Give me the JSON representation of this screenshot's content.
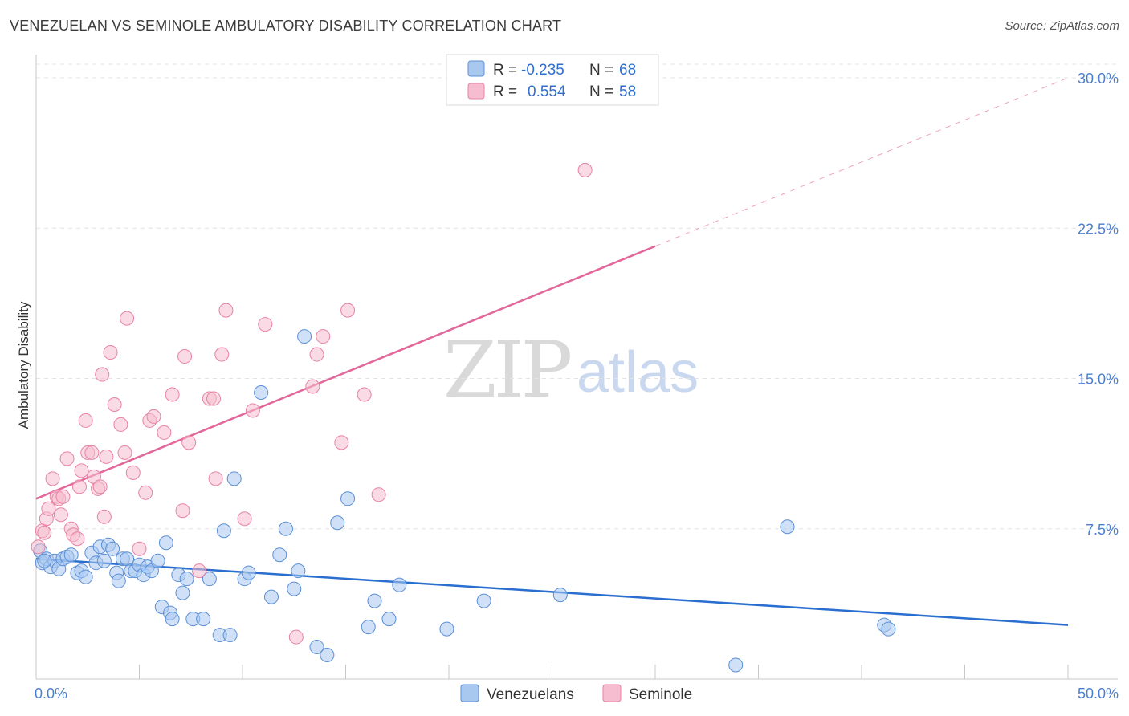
{
  "title": "VENEZUELAN VS SEMINOLE AMBULATORY DISABILITY CORRELATION CHART",
  "source": "Source: ZipAtlas.com",
  "watermark": {
    "zip": "ZIP",
    "atlas": "atlas"
  },
  "colors": {
    "blue_fill": "#a9c8f0",
    "blue_stroke": "#5b8fd6",
    "blue_line": "#2a6fd0",
    "pink_fill": "#f6bdd0",
    "pink_stroke": "#e882a3",
    "pink_line": "#e2679a",
    "grid": "#e3e3e3",
    "axis_label": "#4a7fd0"
  },
  "legend_top": {
    "rows": [
      {
        "r_label": "R =",
        "r_value": "-0.235",
        "n_label": "N =",
        "n_value": "68",
        "series": "blue"
      },
      {
        "r_label": "R =",
        "r_value": "0.554",
        "n_label": "N =",
        "n_value": "58",
        "series": "pink"
      }
    ]
  },
  "legend_bottom": [
    "Venezuelans",
    "Seminole"
  ],
  "chart_data": {
    "type": "scatter",
    "title": "VENEZUELAN VS SEMINOLE AMBULATORY DISABILITY CORRELATION CHART",
    "xlabel": "",
    "ylabel": "Ambulatory Disability",
    "xlim": [
      0,
      50
    ],
    "ylim": [
      0,
      30
    ],
    "x_tick_labels": [
      "0.0%",
      "50.0%"
    ],
    "y_ticks": [
      7.5,
      15.0,
      22.5,
      30.0
    ],
    "y_tick_labels": [
      "7.5%",
      "15.0%",
      "22.5%",
      "30.0%"
    ],
    "series": [
      {
        "name": "Venezuelans",
        "color": "blue",
        "R": -0.235,
        "N": 68,
        "trend": {
          "x0": 0,
          "y0": 6.0,
          "x1": 50,
          "y1": 2.7
        },
        "points": [
          [
            0.2,
            6.4
          ],
          [
            0.3,
            5.8
          ],
          [
            0.5,
            6.0
          ],
          [
            0.7,
            5.6
          ],
          [
            0.9,
            5.9
          ],
          [
            1.1,
            5.5
          ],
          [
            1.3,
            6.0
          ],
          [
            1.5,
            6.1
          ],
          [
            1.7,
            6.2
          ],
          [
            2.0,
            5.3
          ],
          [
            2.2,
            5.4
          ],
          [
            2.4,
            5.1
          ],
          [
            2.7,
            6.3
          ],
          [
            2.9,
            5.8
          ],
          [
            3.1,
            6.6
          ],
          [
            3.3,
            5.9
          ],
          [
            3.5,
            6.7
          ],
          [
            3.7,
            6.5
          ],
          [
            3.9,
            5.3
          ],
          [
            4.0,
            4.9
          ],
          [
            4.2,
            6.0
          ],
          [
            4.4,
            6.0
          ],
          [
            4.6,
            5.4
          ],
          [
            4.8,
            5.4
          ],
          [
            5.0,
            5.7
          ],
          [
            5.2,
            5.2
          ],
          [
            5.4,
            5.6
          ],
          [
            5.6,
            5.4
          ],
          [
            5.9,
            5.9
          ],
          [
            6.1,
            3.6
          ],
          [
            6.3,
            6.8
          ],
          [
            6.5,
            3.3
          ],
          [
            6.6,
            3.0
          ],
          [
            6.9,
            5.2
          ],
          [
            7.1,
            4.3
          ],
          [
            7.3,
            5.0
          ],
          [
            7.6,
            3.0
          ],
          [
            8.1,
            3.0
          ],
          [
            8.4,
            5.0
          ],
          [
            8.9,
            2.2
          ],
          [
            9.1,
            7.4
          ],
          [
            9.4,
            2.2
          ],
          [
            9.6,
            10.0
          ],
          [
            10.1,
            5.0
          ],
          [
            10.3,
            5.3
          ],
          [
            10.9,
            14.3
          ],
          [
            11.4,
            4.1
          ],
          [
            11.8,
            6.2
          ],
          [
            12.1,
            7.5
          ],
          [
            12.5,
            4.5
          ],
          [
            12.7,
            5.4
          ],
          [
            13.0,
            17.1
          ],
          [
            13.6,
            1.6
          ],
          [
            14.1,
            1.2
          ],
          [
            14.6,
            7.8
          ],
          [
            15.1,
            9.0
          ],
          [
            16.1,
            2.6
          ],
          [
            16.4,
            3.9
          ],
          [
            17.1,
            3.0
          ],
          [
            17.6,
            4.7
          ],
          [
            19.9,
            2.5
          ],
          [
            21.7,
            3.9
          ],
          [
            25.4,
            4.2
          ],
          [
            33.9,
            0.7
          ],
          [
            36.4,
            7.6
          ],
          [
            41.1,
            2.7
          ],
          [
            41.3,
            2.5
          ],
          [
            0.4,
            5.9
          ]
        ]
      },
      {
        "name": "Seminole",
        "color": "pink",
        "R": 0.554,
        "N": 58,
        "trend": {
          "x0": 0,
          "y0": 9.0,
          "x1": 30,
          "y1": 21.6,
          "dash_x1": 50,
          "dash_y1": 30.0
        },
        "points": [
          [
            0.1,
            6.6
          ],
          [
            0.3,
            7.4
          ],
          [
            0.4,
            7.3
          ],
          [
            0.5,
            8.0
          ],
          [
            0.6,
            8.5
          ],
          [
            0.8,
            10.0
          ],
          [
            1.0,
            9.1
          ],
          [
            1.1,
            9.0
          ],
          [
            1.2,
            8.2
          ],
          [
            1.3,
            9.1
          ],
          [
            1.5,
            11.0
          ],
          [
            1.7,
            7.5
          ],
          [
            1.8,
            7.2
          ],
          [
            2.0,
            7.0
          ],
          [
            2.1,
            9.6
          ],
          [
            2.2,
            10.4
          ],
          [
            2.4,
            12.9
          ],
          [
            2.5,
            11.3
          ],
          [
            2.7,
            11.3
          ],
          [
            2.8,
            10.1
          ],
          [
            3.0,
            9.5
          ],
          [
            3.1,
            9.6
          ],
          [
            3.2,
            15.2
          ],
          [
            3.3,
            8.1
          ],
          [
            3.4,
            11.1
          ],
          [
            3.6,
            16.3
          ],
          [
            3.8,
            13.7
          ],
          [
            4.1,
            12.7
          ],
          [
            4.3,
            11.3
          ],
          [
            4.4,
            18.0
          ],
          [
            4.7,
            10.3
          ],
          [
            5.0,
            6.5
          ],
          [
            5.3,
            9.3
          ],
          [
            5.5,
            12.9
          ],
          [
            5.7,
            13.1
          ],
          [
            6.2,
            12.3
          ],
          [
            6.6,
            14.2
          ],
          [
            7.1,
            8.4
          ],
          [
            7.2,
            16.1
          ],
          [
            7.4,
            11.8
          ],
          [
            7.9,
            5.4
          ],
          [
            8.4,
            14.0
          ],
          [
            8.6,
            14.0
          ],
          [
            8.7,
            10.0
          ],
          [
            9.0,
            16.2
          ],
          [
            9.2,
            18.4
          ],
          [
            10.1,
            8.0
          ],
          [
            10.5,
            13.4
          ],
          [
            11.1,
            17.7
          ],
          [
            12.6,
            2.1
          ],
          [
            13.4,
            14.6
          ],
          [
            13.6,
            16.2
          ],
          [
            13.9,
            17.1
          ],
          [
            14.8,
            11.8
          ],
          [
            15.1,
            18.4
          ],
          [
            15.9,
            14.2
          ],
          [
            16.6,
            9.2
          ],
          [
            26.6,
            25.4
          ]
        ]
      }
    ]
  }
}
